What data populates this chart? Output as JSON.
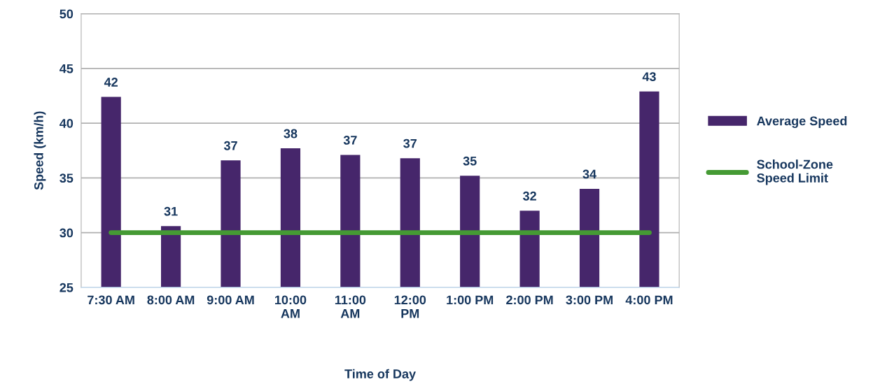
{
  "chart_data": {
    "type": "bar",
    "xlabel": "Time of Day",
    "ylabel": "Speed (km/h)",
    "categories": [
      "7:30 AM",
      "8:00 AM",
      "9:00 AM",
      "10:00\nAM",
      "11:00\nAM",
      "12:00\nPM",
      "1:00 PM",
      "2:00 PM",
      "3:00 PM",
      "4:00 PM"
    ],
    "series": [
      {
        "name": "Average Speed",
        "color": "#46266b",
        "values": [
          42.4,
          30.6,
          36.6,
          37.7,
          37.1,
          36.8,
          35.2,
          32.0,
          34.0,
          42.9
        ],
        "value_labels": [
          "42",
          "31",
          "37",
          "38",
          "37",
          "37",
          "35",
          "32",
          "34",
          "43"
        ]
      },
      {
        "name": "School-Zone\nSpeed Limit",
        "type": "line",
        "color": "#459a34",
        "values": [
          30,
          30,
          30,
          30,
          30,
          30,
          30,
          30,
          30,
          30
        ]
      }
    ],
    "ylim": [
      25,
      50
    ],
    "yticks": [
      25,
      30,
      35,
      40,
      45,
      50
    ],
    "grid": "y",
    "legend": "right"
  }
}
